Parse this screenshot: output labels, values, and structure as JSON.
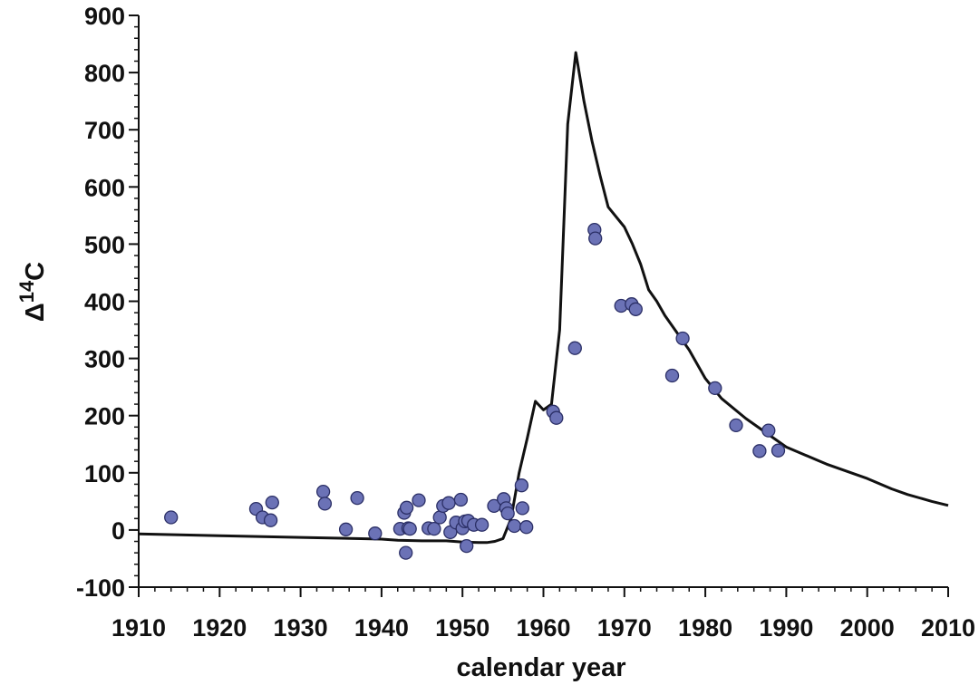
{
  "chart_data": {
    "type": "scatter",
    "title": "",
    "xlabel": "calendar year",
    "ylabel_main": "Δ",
    "ylabel_sup": "14",
    "ylabel_sub": "C",
    "xlim": [
      1910,
      2010
    ],
    "ylim": [
      -100,
      900
    ],
    "xticks": [
      1910,
      1920,
      1930,
      1940,
      1950,
      1960,
      1970,
      1980,
      1990,
      2000,
      2010
    ],
    "yticks": [
      -100,
      0,
      100,
      200,
      300,
      400,
      500,
      600,
      700,
      800,
      900
    ],
    "grid": false,
    "legend": "none",
    "colors": {
      "line": "#111111",
      "point_fill": "#6b72b6",
      "point_stroke": "#2b2f66",
      "axis": "#111111"
    },
    "curve": {
      "x": [
        1910,
        1920,
        1930,
        1940,
        1942,
        1945,
        1948,
        1950,
        1952,
        1953,
        1954,
        1955,
        1956,
        1957,
        1958,
        1959,
        1960,
        1961,
        1962,
        1963,
        1964,
        1965,
        1966,
        1967,
        1968,
        1970,
        1971,
        1972,
        1973,
        1974,
        1975,
        1976,
        1978,
        1980,
        1982,
        1985,
        1990,
        1995,
        2000,
        2003,
        2005,
        2008,
        2010
      ],
      "y": [
        -7,
        -10,
        -13,
        -16,
        -18,
        -19,
        -19,
        -21,
        -22,
        -22,
        -20,
        -15,
        20,
        100,
        160,
        225,
        210,
        220,
        350,
        710,
        835,
        750,
        680,
        620,
        565,
        530,
        500,
        465,
        420,
        400,
        375,
        355,
        315,
        265,
        230,
        195,
        145,
        115,
        90,
        72,
        62,
        50,
        43
      ]
    },
    "series": [
      {
        "x": [
          1914,
          1924.5,
          1925.3,
          1926.3,
          1926.5,
          1932.8,
          1933,
          1935.6,
          1937,
          1939.2,
          1942.3,
          1942.8,
          1943,
          1943.1,
          1943.3,
          1943.5,
          1944.6,
          1945.8,
          1946.5,
          1947.2,
          1947.6,
          1948.3,
          1948.5,
          1949.2,
          1949.8,
          1950,
          1950.3,
          1950.5,
          1950.7,
          1951.4,
          1952.4,
          1953.9,
          1955.1,
          1955.4,
          1955.6,
          1956.4,
          1957.3,
          1957.4,
          1957.9,
          1961.2,
          1961.6,
          1963.9,
          1966.3,
          1966.4,
          1969.6,
          1970.9,
          1971.4,
          1975.9,
          1977.2,
          1981.2,
          1983.8,
          1986.7,
          1987.8,
          1989
        ],
        "y": [
          22,
          37,
          22,
          17,
          48,
          67,
          46,
          1,
          56,
          -6,
          2,
          30,
          -40,
          39,
          3,
          2,
          52,
          3,
          2,
          22,
          42,
          47,
          -4,
          13,
          53,
          3,
          15,
          -28,
          16,
          9,
          9,
          42,
          54,
          38,
          29,
          7,
          78,
          38,
          5,
          207,
          196,
          318,
          525,
          510,
          392,
          395,
          386,
          270,
          335,
          248,
          183,
          138,
          174,
          139
        ]
      }
    ]
  }
}
